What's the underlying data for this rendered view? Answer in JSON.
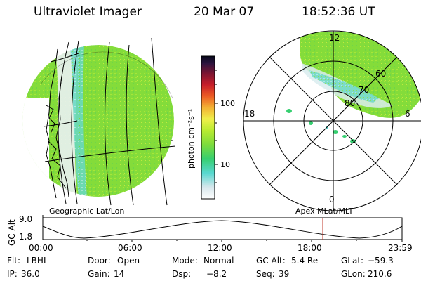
{
  "header": {
    "title": "Ultraviolet Imager",
    "date": "20 Mar 07",
    "time": "18:52:36 UT"
  },
  "colorbar": {
    "unit_label": "photon cm⁻²s⁻¹",
    "ticks": [
      "100",
      "10"
    ],
    "scale": "log",
    "colors": [
      "#ffffff",
      "#d8e7ec",
      "#58d8d0",
      "#36cf70",
      "#7ddc3c",
      "#b9eb31",
      "#f0ef4a",
      "#f3b133",
      "#ec5b23",
      "#c71e2a",
      "#7b1532",
      "#2d143f",
      "#05081a"
    ]
  },
  "left_panel": {
    "caption": "Geographic Lat/Lon"
  },
  "right_panel": {
    "caption": "Apex MLat/MLT",
    "mlt_labels": {
      "top": "12",
      "left": "18",
      "right": "6",
      "bottom": "0"
    },
    "mlat_labels": [
      "60",
      "70",
      "80"
    ]
  },
  "altitude_plot": {
    "ylabel": "GC Alt",
    "yticks": [
      "9.0",
      "1.8"
    ],
    "xticks": [
      "00:00",
      "06:00",
      "12:00",
      "18:00",
      "23:59"
    ],
    "current_time_marker": "18:52",
    "marker_color": "#c0392b"
  },
  "info": {
    "filter_label": "Flt:",
    "filter_value": "LBHL",
    "door_label": "Door:",
    "door_value": "Open",
    "mode_label": "Mode:",
    "mode_value": "Normal",
    "gcalt_label": "GC Alt:",
    "gcalt_value": "5.4 Re",
    "glat_label": "GLat:",
    "glat_value": "−59.3",
    "ip_label": "IP:",
    "ip_value": "36.0",
    "gain_label": "Gain:",
    "gain_value": "14",
    "dsp_label": "Dsp:",
    "dsp_value": "−8.2",
    "seq_label": "Seq:",
    "seq_value": "39",
    "glon_label": "GLon:",
    "glon_value": "210.6"
  },
  "colors": {
    "green": "#7ddc3c",
    "lightgreen": "#b0e94a",
    "cyan": "#58d8d0",
    "white_haze": "#e4eef0"
  }
}
